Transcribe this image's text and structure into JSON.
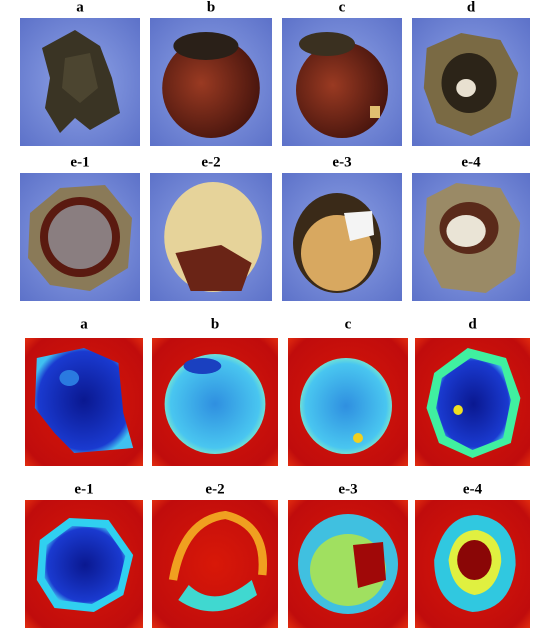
{
  "photo_rows": [
    [
      "a",
      "b",
      "c",
      "d"
    ],
    [
      "e-1",
      "e-2",
      "e-3",
      "e-4"
    ]
  ],
  "heatmap_rows": [
    [
      "a",
      "b",
      "c",
      "d"
    ],
    [
      "e-1",
      "e-2",
      "e-3",
      "e-4"
    ]
  ]
}
